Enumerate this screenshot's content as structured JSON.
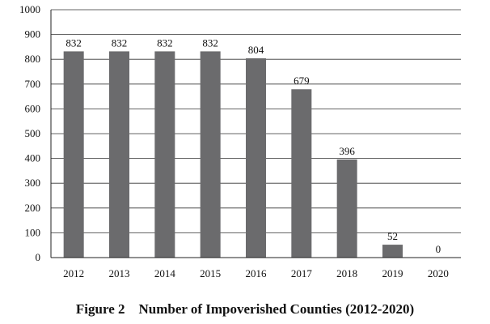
{
  "chart_data": {
    "type": "bar",
    "title": "Figure 2    Number of Impoverished Counties (2012-2020)",
    "categories": [
      "2012",
      "2013",
      "2014",
      "2015",
      "2016",
      "2017",
      "2018",
      "2019",
      "2020"
    ],
    "values": [
      832,
      832,
      832,
      832,
      804,
      679,
      396,
      52,
      0
    ],
    "data_labels": [
      "832",
      "832",
      "832",
      "832",
      "804",
      "679",
      "396",
      "52",
      "0"
    ],
    "yticks": [
      "0",
      "100",
      "200",
      "300",
      "400",
      "500",
      "600",
      "700",
      "800",
      "900",
      "1000"
    ],
    "ylim": [
      0,
      1000
    ],
    "xlabel": "",
    "ylabel": "",
    "grid": true,
    "legend": "none",
    "bar_color": "#6b6b6d",
    "grid_color": "#333333"
  }
}
